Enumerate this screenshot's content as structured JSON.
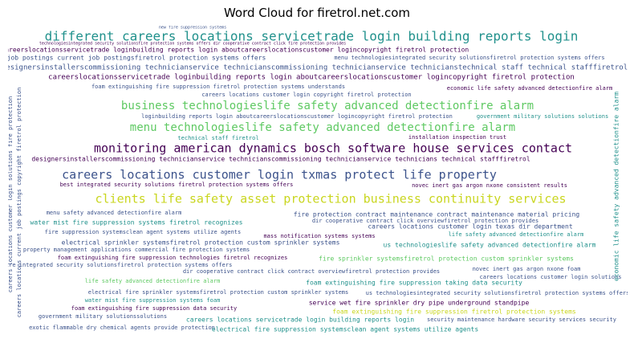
{
  "figure": {
    "title": "Word Cloud for firetrol.net.com"
  },
  "chart_data": {
    "type": "wordcloud",
    "title": "Word Cloud for firetrol.net.com",
    "background": "#ffffff",
    "palette": [
      "#440154",
      "#3b528b",
      "#21918c",
      "#5ec962",
      "#c9d61f"
    ],
    "words": [
      {
        "text": "new fire suppression systems",
        "weight": 1,
        "color": "#3b528b"
      },
      {
        "text": "different careers locations servicetrade login building reports login",
        "weight": 10,
        "color": "#21918c"
      },
      {
        "text": "technologiesintegrated security solutionsfire protection systems offers dir cooperative contract click fire protection provides",
        "weight": 1,
        "color": "#440154"
      },
      {
        "text": "uscareerslocationsservicetrade loginbuilding reports login aboutcareerslocationscustomer logincopyright firetrol protection",
        "weight": 3,
        "color": "#440154"
      },
      {
        "text": "job postings current job postingsfiretrol protection systems offers",
        "weight": 3,
        "color": "#3b528b"
      },
      {
        "text": "menu technologiesintegrated security solutionsfiretrol protection systems offers",
        "weight": 3,
        "color": "#3b528b"
      },
      {
        "text": "designersinstallerscommissioning technicianservice technicianscommissioning technicianservice technicianstechnical staff technical stafffiretrol",
        "weight": 4,
        "color": "#3b528b"
      },
      {
        "text": "careerslocationsservicetrade loginbuilding reports login aboutcareerslocationscustomer logincopyright firetrol protection",
        "weight": 4,
        "color": "#440154"
      },
      {
        "text": "foam extinguishing fire suppression firetrol protection systems understands",
        "weight": 3,
        "color": "#3b528b"
      },
      {
        "text": "economic life safety advanced detectionfire alarm",
        "weight": 3,
        "color": "#440154"
      },
      {
        "text": "careers locations customer login copyright firetrol protection",
        "weight": 3,
        "color": "#3b528b"
      },
      {
        "text": "business technologieslife safety advanced detectionfire alarm",
        "weight": 8,
        "color": "#5ec962"
      },
      {
        "text": "loginbuilding reports login aboutcareerslocationscustomer logincopyright firetrol protection",
        "weight": 2,
        "color": "#3b528b"
      },
      {
        "text": "government military solutions solutions",
        "weight": 3,
        "color": "#21918c"
      },
      {
        "text": "menu technologieslife safety advanced detectionfire alarm",
        "weight": 8,
        "color": "#5ec962"
      },
      {
        "text": "technical staff firetrol",
        "weight": 3,
        "color": "#21918c"
      },
      {
        "text": "installation inspection trust",
        "weight": 3,
        "color": "#440154"
      },
      {
        "text": "monitoring american dynamics bosch software house services contact",
        "weight": 9,
        "color": "#440154"
      },
      {
        "text": "designersinstallerscommissioning technicianservice technicianscommissioning technicianservice technicians technical stafffiretrol",
        "weight": 3,
        "color": "#440154"
      },
      {
        "text": "careers locations customer login txmas protect life property",
        "weight": 9,
        "color": "#3b528b"
      },
      {
        "text": "best integrated security solutions firetrol protection systems offers",
        "weight": 2,
        "color": "#440154"
      },
      {
        "text": "novec inert gas argon nxone consistent results",
        "weight": 3,
        "color": "#440154"
      },
      {
        "text": "clients life safety asset protection business continuity services",
        "weight": 9,
        "color": "#c9d61f"
      },
      {
        "text": "menu safety advanced detectionfire alarm",
        "weight": 2,
        "color": "#3b528b"
      },
      {
        "text": "fire protection contract maintenance contract maintenance material pricing",
        "weight": 3,
        "color": "#3b528b"
      },
      {
        "text": "water mist fire suppression systems firetrol recognizes",
        "weight": 3,
        "color": "#21918c"
      },
      {
        "text": "dir cooperative contract click overviewfiretrol protection provides",
        "weight": 2,
        "color": "#3b528b"
      },
      {
        "text": "careers locations customer login texas dir department",
        "weight": 3,
        "color": "#3b528b"
      },
      {
        "text": "fire suppression systemsclean agent systems utilize agents",
        "weight": 2,
        "color": "#3b528b"
      },
      {
        "text": "life safety advanced detectionfire alarm",
        "weight": 3,
        "color": "#21918c"
      },
      {
        "text": "mass notification systems systems",
        "weight": 3,
        "color": "#440154"
      },
      {
        "text": "electrical sprinkler systemsfiretrol protection custom sprinkler systems",
        "weight": 3,
        "color": "#3b528b"
      },
      {
        "text": "us technologieslife safety advanced detectionfire alarm",
        "weight": 3,
        "color": "#21918c"
      },
      {
        "text": "property management applications commercial fire protection systems",
        "weight": 2,
        "color": "#3b528b"
      },
      {
        "text": "foam extinguishing fire suppression technologies firetrol recognizes",
        "weight": 3,
        "color": "#440154"
      },
      {
        "text": "fire sprinkler systemsfiretrol protection custom sprinkler systems",
        "weight": 3,
        "color": "#5ec962"
      },
      {
        "text": "fire integrated security solutionsfiretrol protection systems offers",
        "weight": 3,
        "color": "#3b528b"
      },
      {
        "text": "dir cooperative contract click contract overviewfiretrol protection provides",
        "weight": 3,
        "color": "#3b528b"
      },
      {
        "text": "novec inert gas argon nxone foam",
        "weight": 3,
        "color": "#3b528b"
      },
      {
        "text": "careers locations customer login solutions",
        "weight": 2,
        "color": "#3b528b"
      },
      {
        "text": "life safety advanced detectionfire alarm",
        "weight": 2,
        "color": "#5ec962"
      },
      {
        "text": "foam extinguishing fire suppression taking data security",
        "weight": 3,
        "color": "#21918c"
      },
      {
        "text": "electrical fire sprinkler systemsfiretrol protection custom sprinkler systems",
        "weight": 3,
        "color": "#3b528b"
      },
      {
        "text": "us technologiesintegrated security solutionsfiretrol protection systems offers",
        "weight": 3,
        "color": "#3b528b"
      },
      {
        "text": "water mist fire suppression systems foam",
        "weight": 2,
        "color": "#21918c"
      },
      {
        "text": "service wet fire sprinkler dry pipe underground standpipe",
        "weight": 3,
        "color": "#440154"
      },
      {
        "text": "foam extinguishing fire suppression data security",
        "weight": 2,
        "color": "#440154"
      },
      {
        "text": "foam extinguishing fire suppression firetrol protection systems",
        "weight": 3,
        "color": "#c9d61f"
      },
      {
        "text": "government military solutionssolutions",
        "weight": 2,
        "color": "#3b528b"
      },
      {
        "text": "careers locations servicetrade login building reports login",
        "weight": 3,
        "color": "#21918c"
      },
      {
        "text": "security maintenance hardware security services security",
        "weight": 2,
        "color": "#3b528b"
      },
      {
        "text": "exotic flammable dry chemical agents provide protection",
        "weight": 2,
        "color": "#3b528b"
      },
      {
        "text": "electrical fire suppression systemsclean agent systems utilize agents",
        "weight": 3,
        "color": "#21918c"
      },
      {
        "text": "careers locations current job postings copyright firetrol protection",
        "weight": 3,
        "color": "#3b528b"
      },
      {
        "text": "careers locations customer login solutions fire protection",
        "weight": 3,
        "color": "#3b528b"
      },
      {
        "text": "economic life safety advanced detectionfire alarm",
        "weight": 3,
        "color": "#21918c"
      }
    ]
  }
}
